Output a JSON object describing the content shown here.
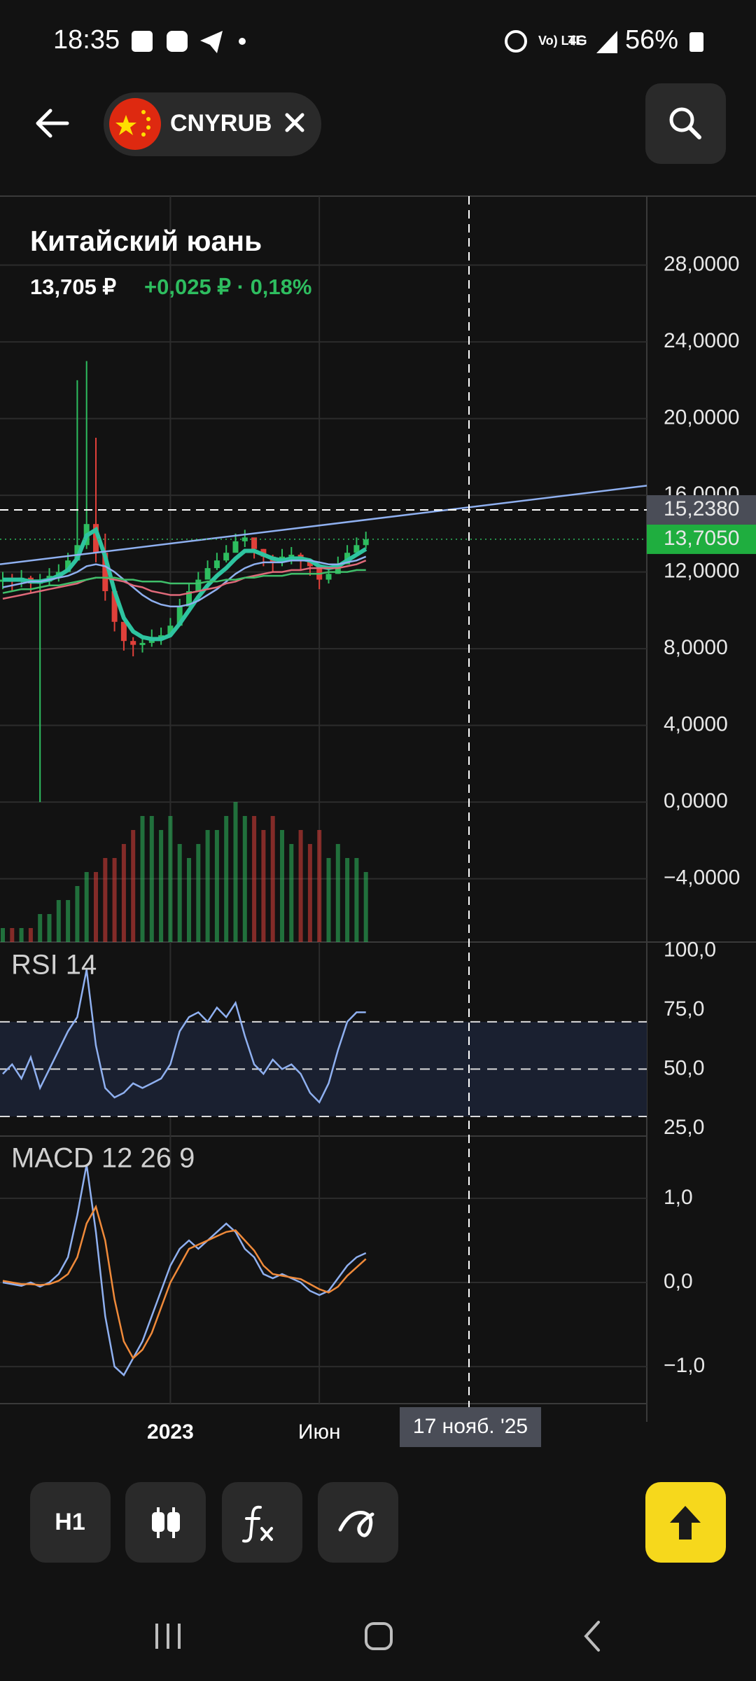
{
  "status_bar": {
    "time": "18:35",
    "network": "4G",
    "battery": "56%"
  },
  "header": {
    "symbol": "CNYRUB"
  },
  "instrument": {
    "name": "Китайский юань",
    "price": "13,705 ₽",
    "change": "+0,025 ₽ · 0,18%"
  },
  "toolbar": {
    "interval": "H1"
  },
  "chart_data": {
    "type": "candlestick",
    "categories": [
      null,
      null,
      null,
      null,
      null,
      null,
      null,
      null,
      null,
      null,
      null,
      null,
      null,
      null,
      null,
      null,
      null,
      null,
      "2023",
      null,
      null,
      null,
      null,
      null,
      null,
      null,
      null,
      null,
      null,
      null,
      null,
      null,
      null,
      null,
      "Июн",
      null,
      null,
      null,
      null,
      null
    ],
    "close": [
      11.6,
      11.5,
      11.7,
      11.4,
      11.5,
      11.8,
      12.0,
      12.6,
      13.4,
      14.5,
      13.0,
      11.0,
      9.4,
      8.4,
      8.2,
      8.3,
      8.6,
      8.7,
      9.2,
      10.2,
      11.0,
      11.6,
      12.2,
      12.6,
      13.0,
      13.6,
      13.8,
      13.2,
      12.8,
      12.5,
      12.8,
      12.9,
      12.6,
      12.3,
      11.6,
      11.9,
      12.4,
      13.0,
      13.4,
      13.7
    ],
    "high": [
      12.0,
      11.9,
      12.1,
      11.8,
      11.9,
      12.2,
      12.4,
      13.0,
      22.0,
      23.0,
      19.0,
      14.0,
      9.8,
      8.8,
      8.6,
      8.7,
      9.0,
      9.1,
      9.6,
      10.6,
      11.4,
      12.0,
      12.6,
      13.0,
      13.4,
      14.0,
      14.2,
      13.6,
      13.2,
      12.9,
      13.2,
      13.3,
      13.0,
      12.7,
      12.0,
      12.3,
      12.8,
      13.4,
      13.8,
      14.1
    ],
    "low": [
      11.1,
      11.0,
      11.2,
      10.9,
      0.0,
      11.3,
      11.5,
      12.1,
      12.9,
      13.2,
      12.5,
      10.5,
      8.9,
      7.9,
      7.6,
      7.8,
      8.1,
      8.2,
      8.7,
      9.7,
      10.5,
      11.1,
      11.7,
      12.1,
      12.5,
      13.1,
      13.3,
      12.7,
      12.3,
      12.0,
      12.3,
      12.4,
      12.1,
      11.8,
      11.1,
      11.4,
      11.9,
      12.5,
      12.9,
      13.2
    ],
    "series": [
      {
        "color": "#2ec4a0",
        "values": [
          11.6,
          11.6,
          11.6,
          11.5,
          11.5,
          11.6,
          11.8,
          12.1,
          12.7,
          13.9,
          14.2,
          12.8,
          11.0,
          9.6,
          8.9,
          8.6,
          8.5,
          8.5,
          8.7,
          9.3,
          10.0,
          10.7,
          11.3,
          11.8,
          12.2,
          12.7,
          13.1,
          13.1,
          12.9,
          12.7,
          12.6,
          12.7,
          12.7,
          12.6,
          12.3,
          12.2,
          12.3,
          12.6,
          12.9,
          13.2
        ]
      },
      {
        "color": "#8fb0f0",
        "values": [
          11.2,
          11.3,
          11.4,
          11.5,
          11.5,
          11.6,
          11.7,
          11.8,
          12.0,
          12.3,
          12.4,
          12.3,
          12.0,
          11.6,
          11.2,
          10.8,
          10.5,
          10.3,
          10.2,
          10.2,
          10.3,
          10.5,
          10.8,
          11.1,
          11.5,
          11.9,
          12.2,
          12.4,
          12.5,
          12.5,
          12.5,
          12.6,
          12.6,
          12.6,
          12.5,
          12.4,
          12.4,
          12.5,
          12.6,
          12.8
        ]
      },
      {
        "color": "#e06a7a",
        "values": [
          10.6,
          10.7,
          10.8,
          10.9,
          11.0,
          11.1,
          11.2,
          11.3,
          11.4,
          11.6,
          11.7,
          11.7,
          11.6,
          11.5,
          11.3,
          11.2,
          11.0,
          10.9,
          10.8,
          10.8,
          10.9,
          11.0,
          11.1,
          11.2,
          11.4,
          11.5,
          11.7,
          11.8,
          11.9,
          12.0,
          12.0,
          12.1,
          12.1,
          12.2,
          12.2,
          12.2,
          12.2,
          12.3,
          12.4,
          12.6
        ]
      },
      {
        "color": "#3fbf6a",
        "values": [
          10.9,
          11.0,
          11.1,
          11.1,
          11.2,
          11.3,
          11.3,
          11.4,
          11.5,
          11.6,
          11.7,
          11.7,
          11.7,
          11.6,
          11.6,
          11.5,
          11.5,
          11.5,
          11.4,
          11.4,
          11.4,
          11.4,
          11.5,
          11.5,
          11.6,
          11.6,
          11.7,
          11.7,
          11.8,
          11.8,
          11.8,
          11.9,
          11.9,
          11.9,
          11.9,
          12.0,
          12.0,
          12.0,
          12.1,
          12.1
        ]
      }
    ],
    "volume": [
      0.1,
      0.1,
      0.1,
      0.1,
      0.2,
      0.2,
      0.3,
      0.3,
      0.4,
      0.5,
      0.5,
      0.6,
      0.6,
      0.7,
      0.8,
      0.9,
      0.9,
      0.8,
      0.9,
      0.7,
      0.6,
      0.7,
      0.8,
      0.8,
      0.9,
      1.0,
      0.9,
      0.9,
      0.8,
      0.9,
      0.8,
      0.7,
      0.8,
      0.7,
      0.8,
      0.6,
      0.7,
      0.6,
      0.6,
      0.5
    ],
    "up_color": "#2ebd5f",
    "down_color": "#e0403a",
    "trendline": [
      12.4,
      16.5
    ],
    "ylim": [
      -7.3,
      31.6
    ],
    "yticks": [
      {
        "value": 28,
        "label": "28,0000"
      },
      {
        "value": 24,
        "label": "24,0000"
      },
      {
        "value": 20,
        "label": "20,0000"
      },
      {
        "value": 16,
        "label": "16,0000"
      },
      {
        "value": 12,
        "label": "12,0000"
      },
      {
        "value": 8,
        "label": "8,0000"
      },
      {
        "value": 4,
        "label": "4,0000"
      },
      {
        "value": 0,
        "label": "0,0000"
      },
      {
        "value": -4,
        "label": "−4,0000"
      }
    ],
    "grid": true,
    "crosshair": {
      "value": 15.238,
      "label": "15,2380",
      "date": "17 нояб. '25"
    },
    "last_price": {
      "value": 13.705,
      "label": "13,7050"
    },
    "rsi": {
      "title": "RSI 14",
      "color": "#8fb0f0",
      "ylim": [
        21.7,
        103.7
      ],
      "yticks": [
        {
          "value": 100,
          "label": "100,0"
        },
        {
          "value": 75,
          "label": "75,0"
        },
        {
          "value": 50,
          "label": "50,0"
        },
        {
          "value": 25,
          "label": "25,0"
        }
      ],
      "levels": [
        30,
        50,
        70
      ],
      "values": [
        48,
        52,
        46,
        55,
        42,
        50,
        58,
        66,
        72,
        92,
        60,
        42,
        38,
        40,
        44,
        42,
        44,
        46,
        52,
        66,
        72,
        74,
        70,
        76,
        72,
        78,
        64,
        52,
        48,
        54,
        50,
        52,
        48,
        40,
        36,
        44,
        58,
        70,
        74,
        74
      ]
    },
    "macd": {
      "title": "MACD 12 26 9",
      "ylim": [
        -1.44,
        1.74
      ],
      "yticks": [
        {
          "value": 1,
          "label": "1,0"
        },
        {
          "value": 0,
          "label": "0,0"
        },
        {
          "value": -1,
          "label": "−1,0"
        }
      ],
      "series": [
        {
          "color": "#8fb0f0",
          "values": [
            0.0,
            -0.02,
            -0.04,
            0.0,
            -0.05,
            0.0,
            0.1,
            0.3,
            0.8,
            1.4,
            0.6,
            -0.4,
            -1.0,
            -1.1,
            -0.9,
            -0.7,
            -0.4,
            -0.1,
            0.2,
            0.4,
            0.5,
            0.4,
            0.5,
            0.6,
            0.7,
            0.6,
            0.4,
            0.3,
            0.1,
            0.05,
            0.1,
            0.05,
            0.0,
            -0.1,
            -0.15,
            -0.1,
            0.05,
            0.2,
            0.3,
            0.35
          ]
        },
        {
          "color": "#f08a3a",
          "values": [
            0.02,
            0.0,
            -0.02,
            -0.02,
            -0.03,
            -0.02,
            0.02,
            0.1,
            0.3,
            0.7,
            0.9,
            0.5,
            -0.2,
            -0.7,
            -0.9,
            -0.8,
            -0.6,
            -0.3,
            0.0,
            0.2,
            0.4,
            0.45,
            0.5,
            0.55,
            0.6,
            0.62,
            0.5,
            0.38,
            0.2,
            0.1,
            0.08,
            0.06,
            0.04,
            -0.02,
            -0.08,
            -0.12,
            -0.05,
            0.08,
            0.18,
            0.28
          ]
        }
      ]
    }
  }
}
